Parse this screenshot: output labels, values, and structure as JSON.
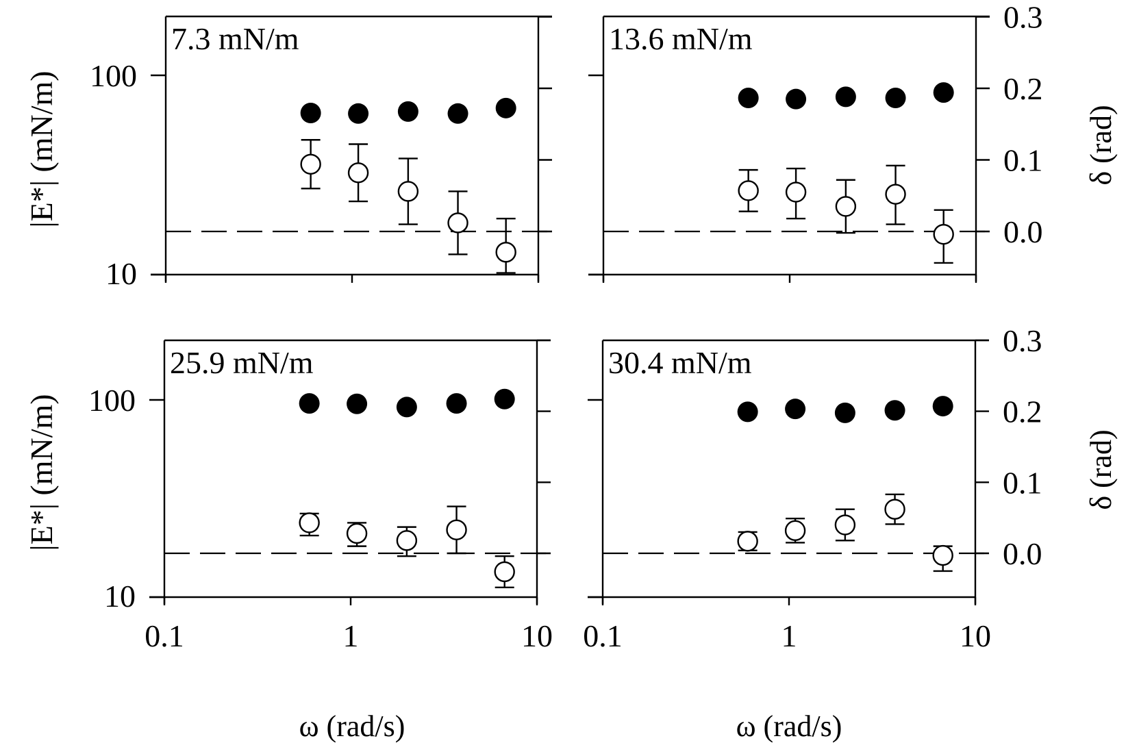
{
  "figure": {
    "x_axis_label": "ω (rad/s)",
    "y_left_label": "|E*| (mN/m)",
    "y_right_label": "δ (rad)"
  },
  "chart_data": [
    {
      "type": "scatter",
      "panel": "top-left",
      "title": "7.3 mN/m",
      "xlabel": "",
      "ylabel": "|E*| (mN/m)",
      "ylabel_right": "",
      "xscale": "log",
      "xlim": [
        0.1,
        10
      ],
      "x_ticks": [
        0.1,
        1,
        10
      ],
      "x_tick_labels": [],
      "ylim_left": [
        10,
        200
      ],
      "y_left_ticks": [
        10,
        100
      ],
      "y_left_tick_labels": [
        "10",
        "100"
      ],
      "ylim_right": [
        -0.057,
        0.3
      ],
      "y_right_ticks": [
        0.0,
        0.1,
        0.2,
        0.3
      ],
      "y_right_tick_labels": [],
      "reference_line": {
        "axis": "right",
        "y": 0.0,
        "style": "dashed"
      },
      "x": [
        0.6,
        1.08,
        2.0,
        3.7,
        6.7
      ],
      "series": [
        {
          "name": "|E*|",
          "marker": "filled-circle",
          "axis": "left",
          "values": [
            64.7,
            64.3,
            65.8,
            64.3,
            68.5
          ]
        },
        {
          "name": "δ",
          "marker": "open-circle",
          "axis": "right",
          "values": [
            0.094,
            0.082,
            0.056,
            0.012,
            -0.029
          ],
          "err_low": [
            0.034,
            0.04,
            0.046,
            0.044,
            0.029
          ],
          "err_high": [
            0.034,
            0.04,
            0.046,
            0.044,
            0.047
          ]
        }
      ]
    },
    {
      "type": "scatter",
      "panel": "top-right",
      "title": "13.6 mN/m",
      "xlabel": "",
      "ylabel": "",
      "ylabel_right": "δ (rad)",
      "xscale": "log",
      "xlim": [
        0.1,
        10
      ],
      "x_ticks": [
        0.1,
        1,
        10
      ],
      "x_tick_labels": [],
      "ylim_left": [
        10,
        200
      ],
      "y_left_ticks": [
        10,
        100
      ],
      "y_left_tick_labels": [],
      "ylim_right": [
        -0.057,
        0.3
      ],
      "y_right_ticks": [
        0.0,
        0.1,
        0.2,
        0.3
      ],
      "y_right_tick_labels": [
        "0.0",
        "0.1",
        "0.2",
        "0.3"
      ],
      "reference_line": {
        "axis": "right",
        "y": 0.0,
        "style": "dashed"
      },
      "x": [
        0.6,
        1.08,
        2.0,
        3.7,
        6.7
      ],
      "series": [
        {
          "name": "|E*|",
          "marker": "filled-circle",
          "axis": "left",
          "values": [
            77,
            76,
            78,
            77,
            82
          ]
        },
        {
          "name": "δ",
          "marker": "open-circle",
          "axis": "right",
          "values": [
            0.057,
            0.055,
            0.035,
            0.052,
            -0.004
          ],
          "err_low": [
            0.029,
            0.037,
            0.037,
            0.042,
            0.04
          ],
          "err_high": [
            0.029,
            0.033,
            0.037,
            0.04,
            0.034
          ]
        }
      ]
    },
    {
      "type": "scatter",
      "panel": "bottom-left",
      "title": "25.9 mN/m",
      "xlabel": "ω (rad/s)",
      "ylabel": "|E*| (mN/m)",
      "ylabel_right": "",
      "xscale": "log",
      "xlim": [
        0.1,
        10
      ],
      "x_ticks": [
        0.1,
        1,
        10
      ],
      "x_tick_labels": [
        "0.1",
        "1",
        "10"
      ],
      "ylim_left": [
        10,
        200
      ],
      "y_left_ticks": [
        10,
        100
      ],
      "y_left_tick_labels": [
        "10",
        "100"
      ],
      "ylim_right": [
        -0.062,
        0.3
      ],
      "y_right_ticks": [
        0.0,
        0.1,
        0.2,
        0.3
      ],
      "y_right_tick_labels": [],
      "reference_line": {
        "axis": "right",
        "y": 0.0,
        "style": "dashed"
      },
      "x": [
        0.6,
        1.08,
        2.0,
        3.7,
        6.7
      ],
      "series": [
        {
          "name": "|E*|",
          "marker": "filled-circle",
          "axis": "left",
          "values": [
            96,
            95.5,
            92,
            96,
            101
          ]
        },
        {
          "name": "δ",
          "marker": "open-circle",
          "axis": "right",
          "values": [
            0.043,
            0.028,
            0.018,
            0.033,
            -0.026
          ],
          "err_low": [
            0.018,
            0.018,
            0.022,
            0.033,
            0.022
          ],
          "err_high": [
            0.013,
            0.015,
            0.019,
            0.033,
            0.022
          ]
        }
      ]
    },
    {
      "type": "scatter",
      "panel": "bottom-right",
      "title": "30.4 mN/m",
      "xlabel": "ω (rad/s)",
      "ylabel": "",
      "ylabel_right": "δ (rad)",
      "xscale": "log",
      "xlim": [
        0.1,
        10
      ],
      "x_ticks": [
        0.1,
        1,
        10
      ],
      "x_tick_labels": [
        "0.1",
        "1",
        "10"
      ],
      "ylim_left": [
        10,
        200
      ],
      "y_left_ticks": [
        10,
        100
      ],
      "y_left_tick_labels": [],
      "ylim_right": [
        -0.062,
        0.3
      ],
      "y_right_ticks": [
        0.0,
        0.1,
        0.2,
        0.3
      ],
      "y_right_tick_labels": [
        "0.0",
        "0.1",
        "0.2",
        "0.3"
      ],
      "reference_line": {
        "axis": "right",
        "y": 0.0,
        "style": "dashed"
      },
      "x": [
        0.6,
        1.08,
        2.0,
        3.7,
        6.7
      ],
      "series": [
        {
          "name": "|E*|",
          "marker": "filled-circle",
          "axis": "left",
          "values": [
            87,
            90,
            86,
            88.5,
            93
          ]
        },
        {
          "name": "δ",
          "marker": "open-circle",
          "axis": "right",
          "values": [
            0.017,
            0.032,
            0.04,
            0.062,
            -0.003
          ],
          "err_low": [
            0.013,
            0.017,
            0.022,
            0.021,
            0.022
          ],
          "err_high": [
            0.013,
            0.017,
            0.022,
            0.021,
            0.013
          ]
        }
      ]
    }
  ]
}
